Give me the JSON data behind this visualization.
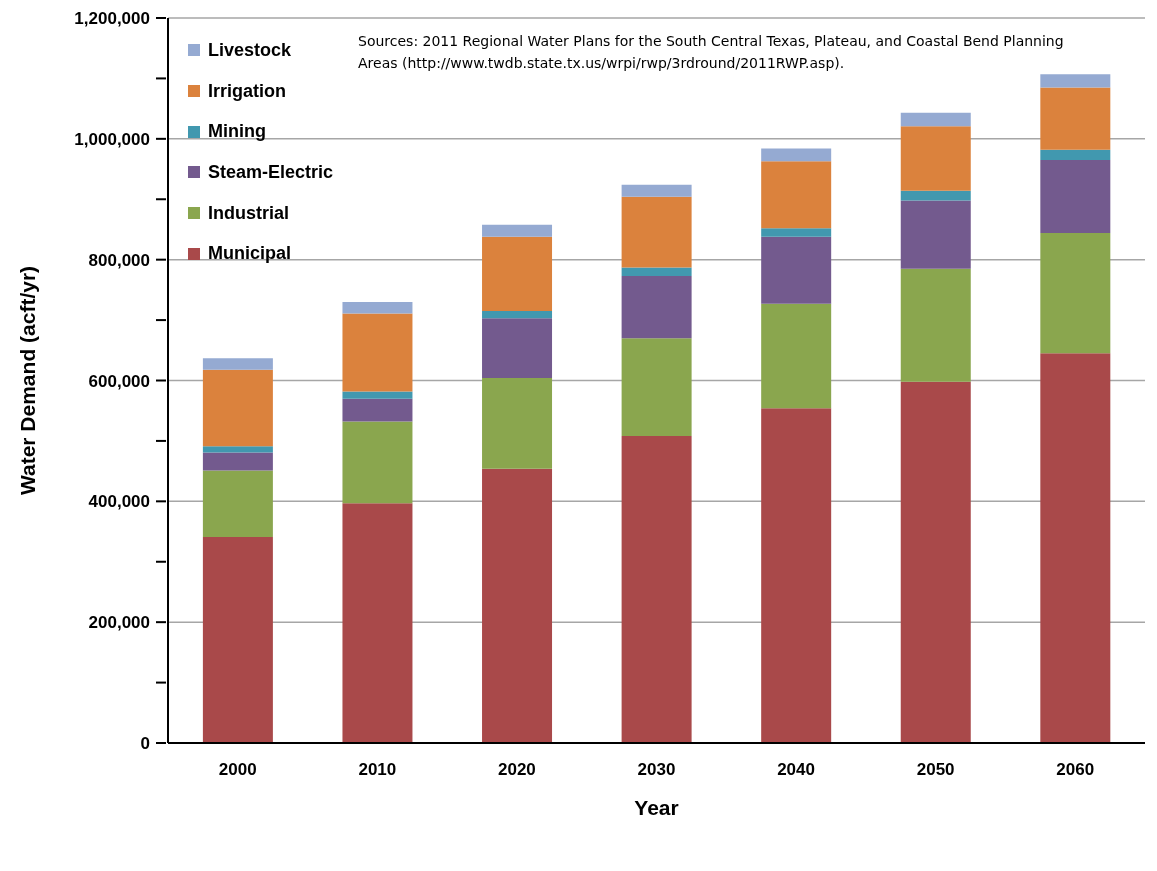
{
  "chart_data": {
    "type": "bar",
    "stacked": true,
    "xlabel": "Year",
    "ylabel": "Water Demand (acft/yr)",
    "categories": [
      "2000",
      "2010",
      "2020",
      "2030",
      "2040",
      "2050",
      "2060"
    ],
    "series": [
      {
        "name": "Municipal",
        "color": "#a9494a",
        "values": [
          341000,
          397000,
          454000,
          508000,
          554000,
          598000,
          645000
        ]
      },
      {
        "name": "Industrial",
        "color": "#8aa64e",
        "values": [
          110000,
          135000,
          150000,
          162000,
          173000,
          187000,
          199000
        ]
      },
      {
        "name": "Steam-Electric",
        "color": "#735a8e",
        "values": [
          30000,
          38000,
          99000,
          103000,
          111000,
          113000,
          121000
        ]
      },
      {
        "name": "Mining",
        "color": "#4198af",
        "values": [
          10000,
          12000,
          12000,
          14000,
          14000,
          16000,
          17000
        ]
      },
      {
        "name": "Irrigation",
        "color": "#db823d",
        "values": [
          127000,
          129000,
          123000,
          117000,
          111000,
          107000,
          103000
        ]
      },
      {
        "name": "Livestock",
        "color": "#95aad2",
        "values": [
          19000,
          19000,
          20000,
          20000,
          21000,
          22000,
          22000
        ]
      }
    ],
    "ylim": [
      0,
      1200000
    ],
    "yticks": [
      {
        "value": 0,
        "label": "0"
      },
      {
        "value": 100000,
        "label": null
      },
      {
        "value": 200000,
        "label": "200,000"
      },
      {
        "value": 300000,
        "label": null
      },
      {
        "value": 400000,
        "label": "400,000"
      },
      {
        "value": 500000,
        "label": null
      },
      {
        "value": 600000,
        "label": "600,000"
      },
      {
        "value": 700000,
        "label": null
      },
      {
        "value": 800000,
        "label": "800,000"
      },
      {
        "value": 900000,
        "label": null
      },
      {
        "value": 1000000,
        "label": "1,000,000"
      },
      {
        "value": 1100000,
        "label": null
      },
      {
        "value": 1200000,
        "label": "1,200,000"
      }
    ],
    "grid": "y",
    "legend": "top left",
    "annotations": [
      "Sources:  2011 Regional Water Plans for the South Central Texas, Plateau, and Coastal Bend Planning Areas (http://www.twdb.state.tx.us/wrpi/rwp/3rdround/2011RWP.asp)."
    ]
  }
}
